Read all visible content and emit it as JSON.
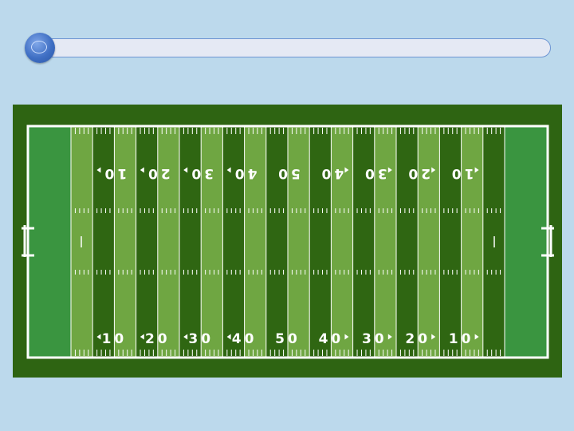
{
  "slide": {
    "title": ""
  },
  "field": {
    "colors": {
      "surround": "#2e6412",
      "endzone": "#3a9540",
      "stripe_dark": "#2f6612",
      "stripe_light": "#6fa642",
      "line": "#ffffff"
    },
    "top_numbers": [
      "10",
      "20",
      "30",
      "40",
      "50",
      "40",
      "30",
      "20",
      "10"
    ],
    "bottom_numbers": [
      "10",
      "20",
      "30",
      "40",
      "50",
      "40",
      "30",
      "20",
      "10"
    ]
  }
}
